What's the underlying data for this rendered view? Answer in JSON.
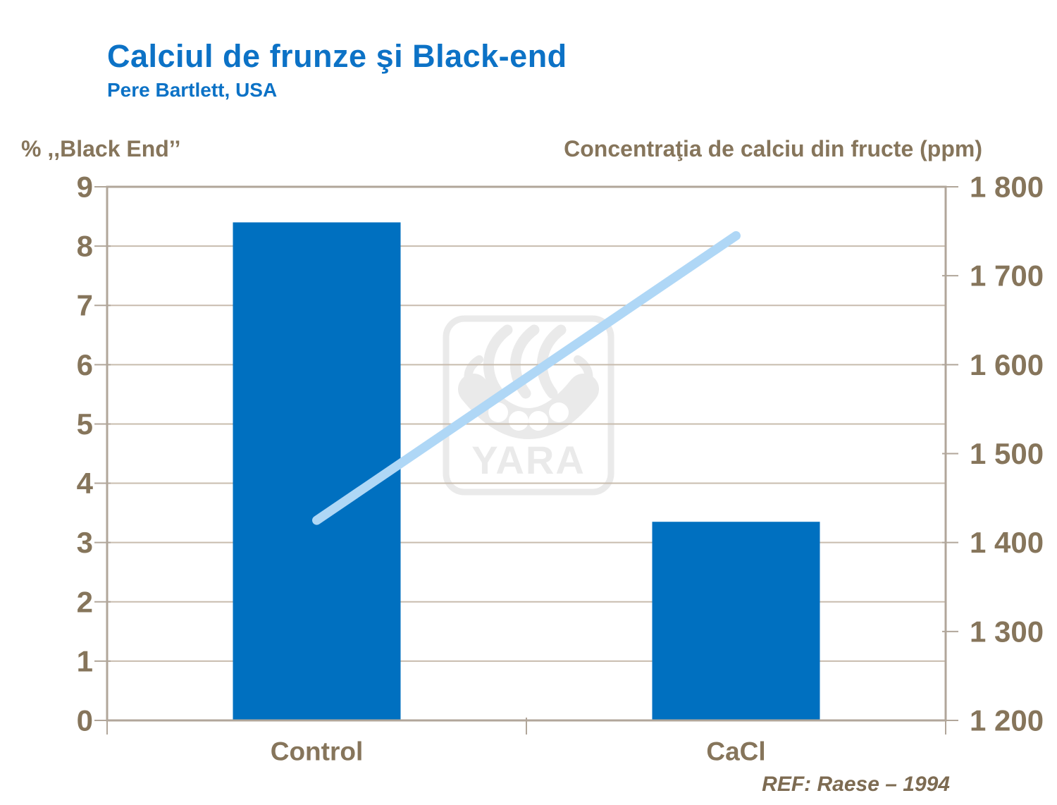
{
  "header": {
    "title": "Calciul de frunze şi Black-end",
    "subtitle": "Pere Bartlett, USA"
  },
  "axes": {
    "left": {
      "title": "% ,,Black End’’",
      "ticks": [
        "9",
        "8",
        "7",
        "6",
        "5",
        "4",
        "3",
        "2",
        "1",
        "0"
      ]
    },
    "right": {
      "title": "Concentraţia de calciu din fructe (ppm)",
      "ticks": [
        "1 800",
        "1 700",
        "1 600",
        "1 500",
        "1 400",
        "1 300",
        "1 200"
      ]
    }
  },
  "chart_data": {
    "type": "combo",
    "categories": [
      "Control",
      "CaCl"
    ],
    "series": [
      {
        "name": "% Black End",
        "type": "bar",
        "axis": "left",
        "values": [
          8.4,
          3.35
        ],
        "color": "#0070C0"
      },
      {
        "name": "Concentraţia de calciu din fructe (ppm)",
        "type": "line",
        "axis": "right",
        "values": [
          1425,
          1745
        ],
        "color": "#AFD7F6"
      }
    ],
    "left_axis": {
      "min": 0,
      "max": 9,
      "step": 1,
      "label": "% ,,Black End’’"
    },
    "right_axis": {
      "min": 1200,
      "max": 1800,
      "step": 100,
      "label": "Concentraţia de calciu din fructe (ppm)"
    },
    "grid": true,
    "legend": false,
    "title": "Calciul de frunze şi Black-end",
    "subtitle": "Pere Bartlett, USA"
  },
  "watermark": {
    "label": "YARA"
  },
  "footer": {
    "ref": "REF: Raese – 1994"
  },
  "colors": {
    "title_blue": "#0C72C6",
    "bar_blue": "#0070C0",
    "line_blue": "#AFD7F6",
    "grid": "#C8BCAE",
    "border": "#B1A69A",
    "label_brown": "#86755B",
    "ref_brown": "#7D6B52",
    "watermark_gray": "#EAEAEA"
  }
}
